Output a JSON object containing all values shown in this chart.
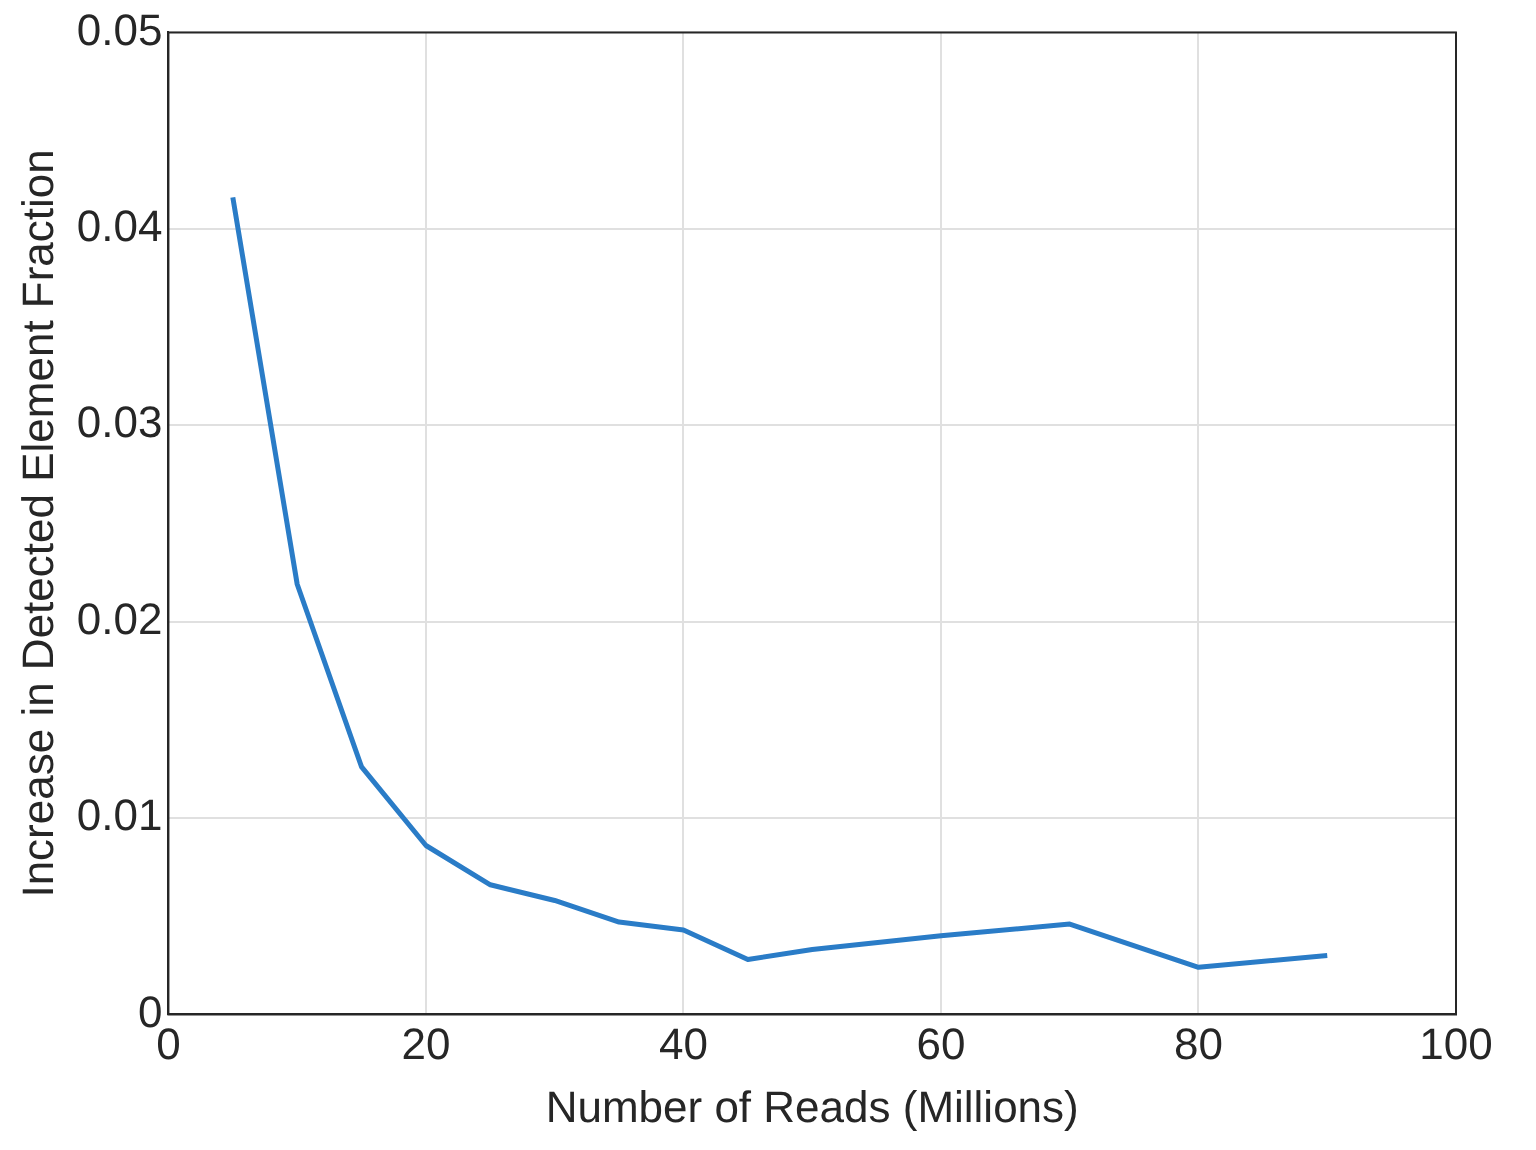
{
  "chart_data": {
    "type": "line",
    "xlabel": "Number of Reads (Millions)",
    "ylabel": "Increase in Detected Element Fraction",
    "x": [
      5,
      10,
      15,
      20,
      25,
      30,
      35,
      40,
      45,
      50,
      60,
      70,
      80,
      90
    ],
    "series": [
      {
        "color": "#2a7cc7",
        "values": [
          0.0416,
          0.0219,
          0.0126,
          0.0086,
          0.0066,
          0.0058,
          0.0047,
          0.0043,
          0.0028,
          0.0033,
          0.004,
          0.0046,
          0.0024,
          0.003
        ]
      }
    ],
    "xlim": [
      0,
      100
    ],
    "xticks": [
      0,
      20,
      40,
      60,
      80,
      100
    ],
    "ylim": [
      0,
      0.05
    ],
    "yticks": [
      0,
      0.01,
      0.02,
      0.03,
      0.04,
      0.05
    ],
    "grid": true,
    "legend": false,
    "marker": "none",
    "line_style": "solid"
  }
}
